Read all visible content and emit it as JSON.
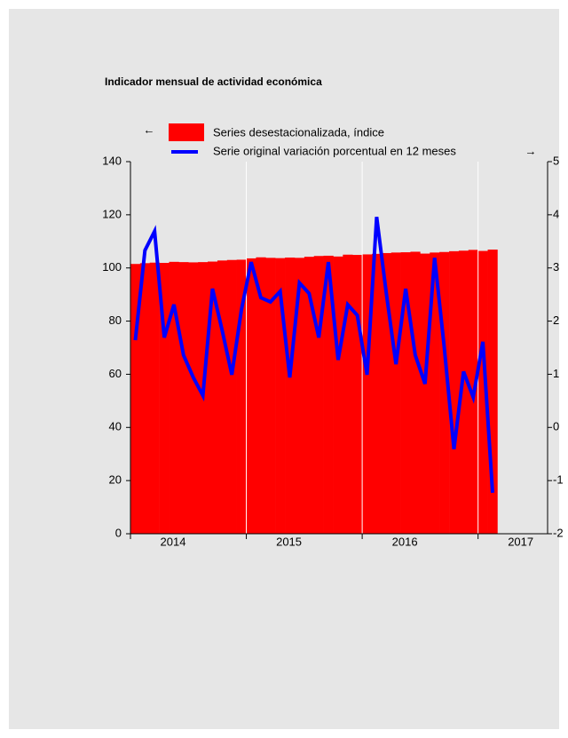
{
  "chart_data": {
    "type": "bar-line",
    "title": "Indicador mensual de actividad económica",
    "left_axis_marker": "←",
    "right_axis_marker": "→",
    "x": [
      2014.042,
      2014.125,
      2014.208,
      2014.292,
      2014.375,
      2014.458,
      2014.542,
      2014.625,
      2014.708,
      2014.792,
      2014.875,
      2014.958,
      2015.042,
      2015.125,
      2015.208,
      2015.292,
      2015.375,
      2015.458,
      2015.542,
      2015.625,
      2015.708,
      2015.792,
      2015.875,
      2015.958,
      2016.042,
      2016.125,
      2016.208,
      2016.292,
      2016.375,
      2016.458,
      2016.542,
      2016.625,
      2016.708,
      2016.792,
      2016.875,
      2016.958,
      2017.042,
      2017.125
    ],
    "xlim": [
      2014,
      2017.6
    ],
    "xticks": [
      2014,
      2015,
      2016,
      2017
    ],
    "grid": true,
    "series": [
      {
        "name": "Series desestacionalizada, índice",
        "color": "#ff0000",
        "kind": "bar",
        "axis": "y",
        "values": [
          101.5,
          101.8,
          102.0,
          101.9,
          102.3,
          102.2,
          102.1,
          102.2,
          102.4,
          102.8,
          103.0,
          103.1,
          103.6,
          104.0,
          103.8,
          103.7,
          103.9,
          103.8,
          104.2,
          104.5,
          104.6,
          104.3,
          105.0,
          104.9,
          105.1,
          105.3,
          105.6,
          105.8,
          105.9,
          106.1,
          105.4,
          105.8,
          106.0,
          106.3,
          106.5,
          106.8,
          106.4,
          106.9
        ]
      },
      {
        "name": "Serie original variación porcentual en 12 meses",
        "color": "#0000ff",
        "kind": "line",
        "axis": "y2",
        "values": [
          1.64,
          3.33,
          3.69,
          1.69,
          2.31,
          1.36,
          0.94,
          0.6,
          2.61,
          1.82,
          0.99,
          2.22,
          3.11,
          2.44,
          2.36,
          2.56,
          0.94,
          2.72,
          2.52,
          1.69,
          3.11,
          1.27,
          2.31,
          2.11,
          0.99,
          3.96,
          2.52,
          1.19,
          2.61,
          1.36,
          0.82,
          3.19,
          1.52,
          -0.41,
          1.05,
          0.57,
          1.61,
          -1.23
        ]
      }
    ],
    "ylim": [
      0,
      140
    ],
    "yticks": [
      0,
      20,
      40,
      60,
      80,
      100,
      120,
      140
    ],
    "y2lim": [
      -2,
      5
    ],
    "y2ticks": [
      -2,
      -1,
      0,
      1,
      2,
      3,
      4,
      5
    ]
  }
}
